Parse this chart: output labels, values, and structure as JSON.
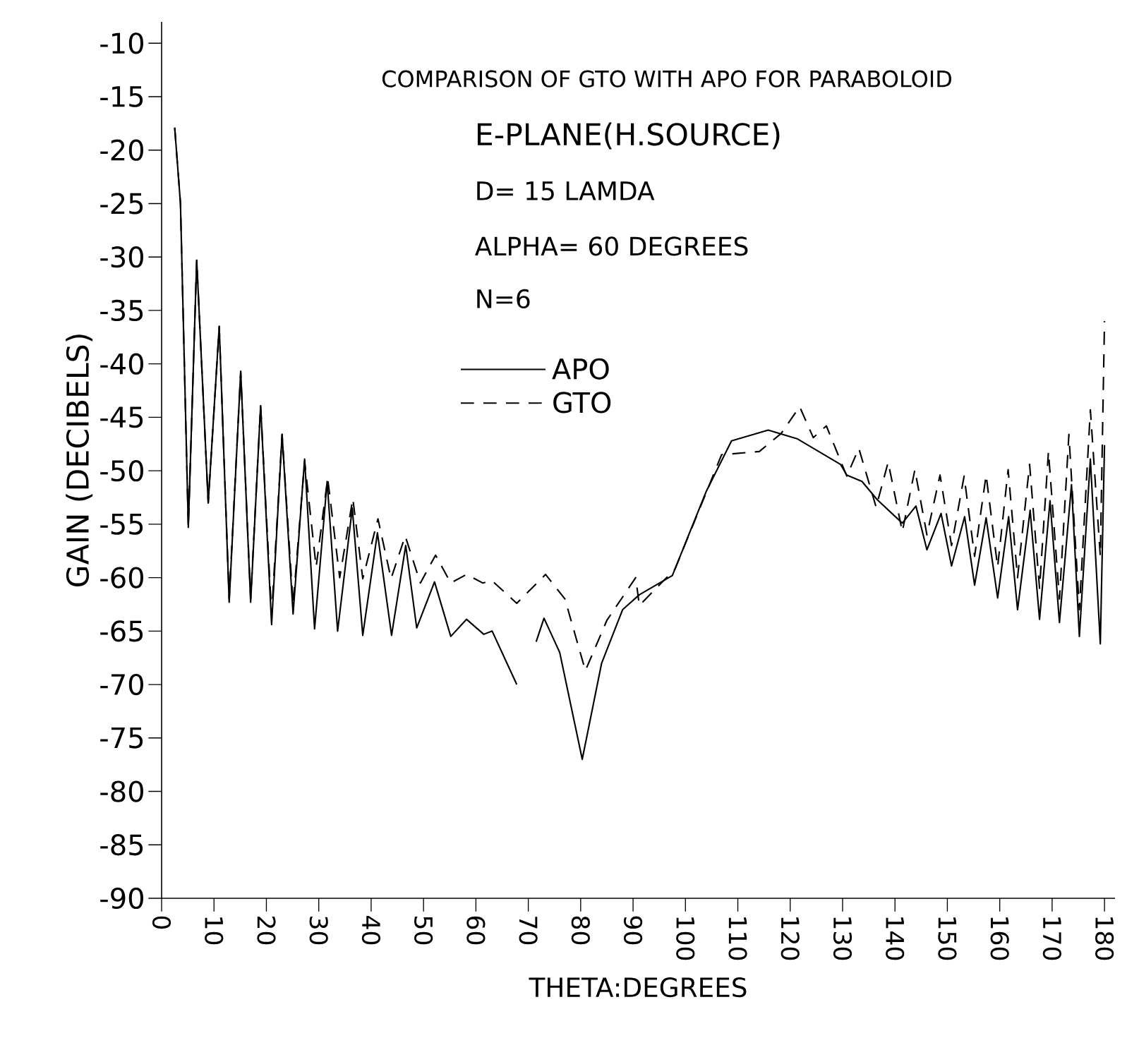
{
  "chart_data": {
    "type": "line",
    "title": "COMPARISON OF GTO WITH APO FOR PARABOLOID",
    "subtitle": "E-PLANE(H.SOURCE)",
    "annotations": [
      "D= 15 LAMDA",
      "ALPHA= 60 DEGREES",
      "N=6"
    ],
    "xlabel": "THETA:DEGREES",
    "ylabel": "GAIN (DECIBELS)",
    "xlim": [
      0,
      182
    ],
    "ylim": [
      -90,
      -8
    ],
    "xticks": [
      0,
      10,
      20,
      30,
      40,
      50,
      60,
      70,
      80,
      90,
      100,
      110,
      120,
      130,
      140,
      150,
      160,
      170,
      180
    ],
    "yticks": [
      -10,
      -15,
      -20,
      -25,
      -30,
      -35,
      -40,
      -45,
      -50,
      -55,
      -60,
      -65,
      -70,
      -75,
      -80,
      -85,
      -90
    ],
    "legend": "top",
    "series": [
      {
        "name": "APO",
        "color": "#000000",
        "line_style": "solid",
        "x": [
          2.5,
          3.6,
          5.1,
          6.7,
          8.9,
          11,
          12.9,
          15.1,
          17,
          18.9,
          21,
          23,
          25.1,
          27.3,
          29.2,
          31.6,
          33.6,
          36.4,
          38.4,
          41.2,
          43.9,
          46.6,
          48.7,
          52.1,
          55.2,
          58.2,
          61.5,
          63.1,
          67.8,
          69.5,
          71.5,
          73,
          76,
          80.3,
          84,
          88,
          91.2,
          97.5,
          104,
          108.8,
          115.8,
          121.3,
          129.6,
          130.8,
          133.7,
          136.6,
          141.4,
          144,
          146.1,
          148.8,
          150.8,
          153.3,
          155.2,
          157.4,
          159.6,
          161.7,
          163.4,
          165.8,
          167.6,
          169.6,
          171.4,
          173.7,
          175.2,
          177.3,
          179.2,
          180
        ],
        "values": [
          -17.9,
          -25,
          -55.3,
          -30.3,
          -53,
          -36.5,
          -62.3,
          -40.7,
          -62.3,
          -43.9,
          -64.4,
          -46.6,
          -63.4,
          -48.9,
          -64.8,
          -51,
          -65,
          -53.5,
          -65.4,
          -55.8,
          -65.4,
          -57,
          -64.7,
          -60.4,
          -65.5,
          -63.9,
          -65.3,
          -65,
          -70,
          null,
          -66,
          -63.8,
          -67,
          -77,
          -68,
          -63,
          -61.6,
          -59.8,
          -51.9,
          -47.2,
          -46.2,
          -47,
          -49.4,
          -50.4,
          -51,
          -52.7,
          -54.9,
          -53.3,
          -57.4,
          -54,
          -58.9,
          -54.3,
          -60.7,
          -54.4,
          -61.9,
          -54.3,
          -63,
          -53.7,
          -63.9,
          -52.8,
          -64.2,
          -51.3,
          -65.5,
          -48.9,
          -66.2,
          -47.6
        ]
      },
      {
        "name": "GTO",
        "color": "#000000",
        "line_style": "dashed",
        "x": [
          2.5,
          3.6,
          5.1,
          6.7,
          8.9,
          11,
          12.9,
          15.1,
          17,
          18.9,
          21,
          23,
          25.1,
          27.3,
          29.5,
          31.7,
          34,
          36.5,
          38.4,
          41.3,
          43.8,
          46.5,
          49.4,
          52.3,
          55.2,
          58.2,
          61.3,
          63.1,
          67.8,
          73.3,
          77,
          80.9,
          85,
          90.5,
          91.2,
          98,
          104,
          106.9,
          114.1,
          118.3,
          121.8,
          124.4,
          126.9,
          130.8,
          133.1,
          136.4,
          138.7,
          141.4,
          143.8,
          146.1,
          148.6,
          150.8,
          153.2,
          155.2,
          157.4,
          159.6,
          161.6,
          163.4,
          165.7,
          167.6,
          169.3,
          171.4,
          173.2,
          175.2,
          177.3,
          179.2,
          180
        ],
        "values": [
          -17.9,
          -25,
          -55.3,
          -30.3,
          -53,
          -36.5,
          -62,
          -40.7,
          -62,
          -43.9,
          -63.5,
          -46.6,
          -62.5,
          -49.1,
          -59,
          -50.7,
          -60,
          -52.6,
          -60.1,
          -54.5,
          -60.1,
          -56.1,
          -60.5,
          -57.9,
          -60.5,
          -59.7,
          -60.5,
          -60.3,
          -62.4,
          -59.7,
          -62,
          -68.7,
          -64,
          -60,
          -62.6,
          -59.2,
          -52,
          -48.5,
          -48.2,
          -46.5,
          -44,
          -46.9,
          -45.8,
          -50.5,
          -47.9,
          -53.4,
          -49.2,
          -55.7,
          -49.9,
          -56,
          -50.4,
          -57,
          -50.5,
          -58,
          -50.4,
          -59,
          -49.9,
          -60,
          -49.4,
          -61,
          -48.2,
          -62,
          -46.6,
          -63,
          -44.3,
          -58,
          -36
        ]
      }
    ]
  }
}
